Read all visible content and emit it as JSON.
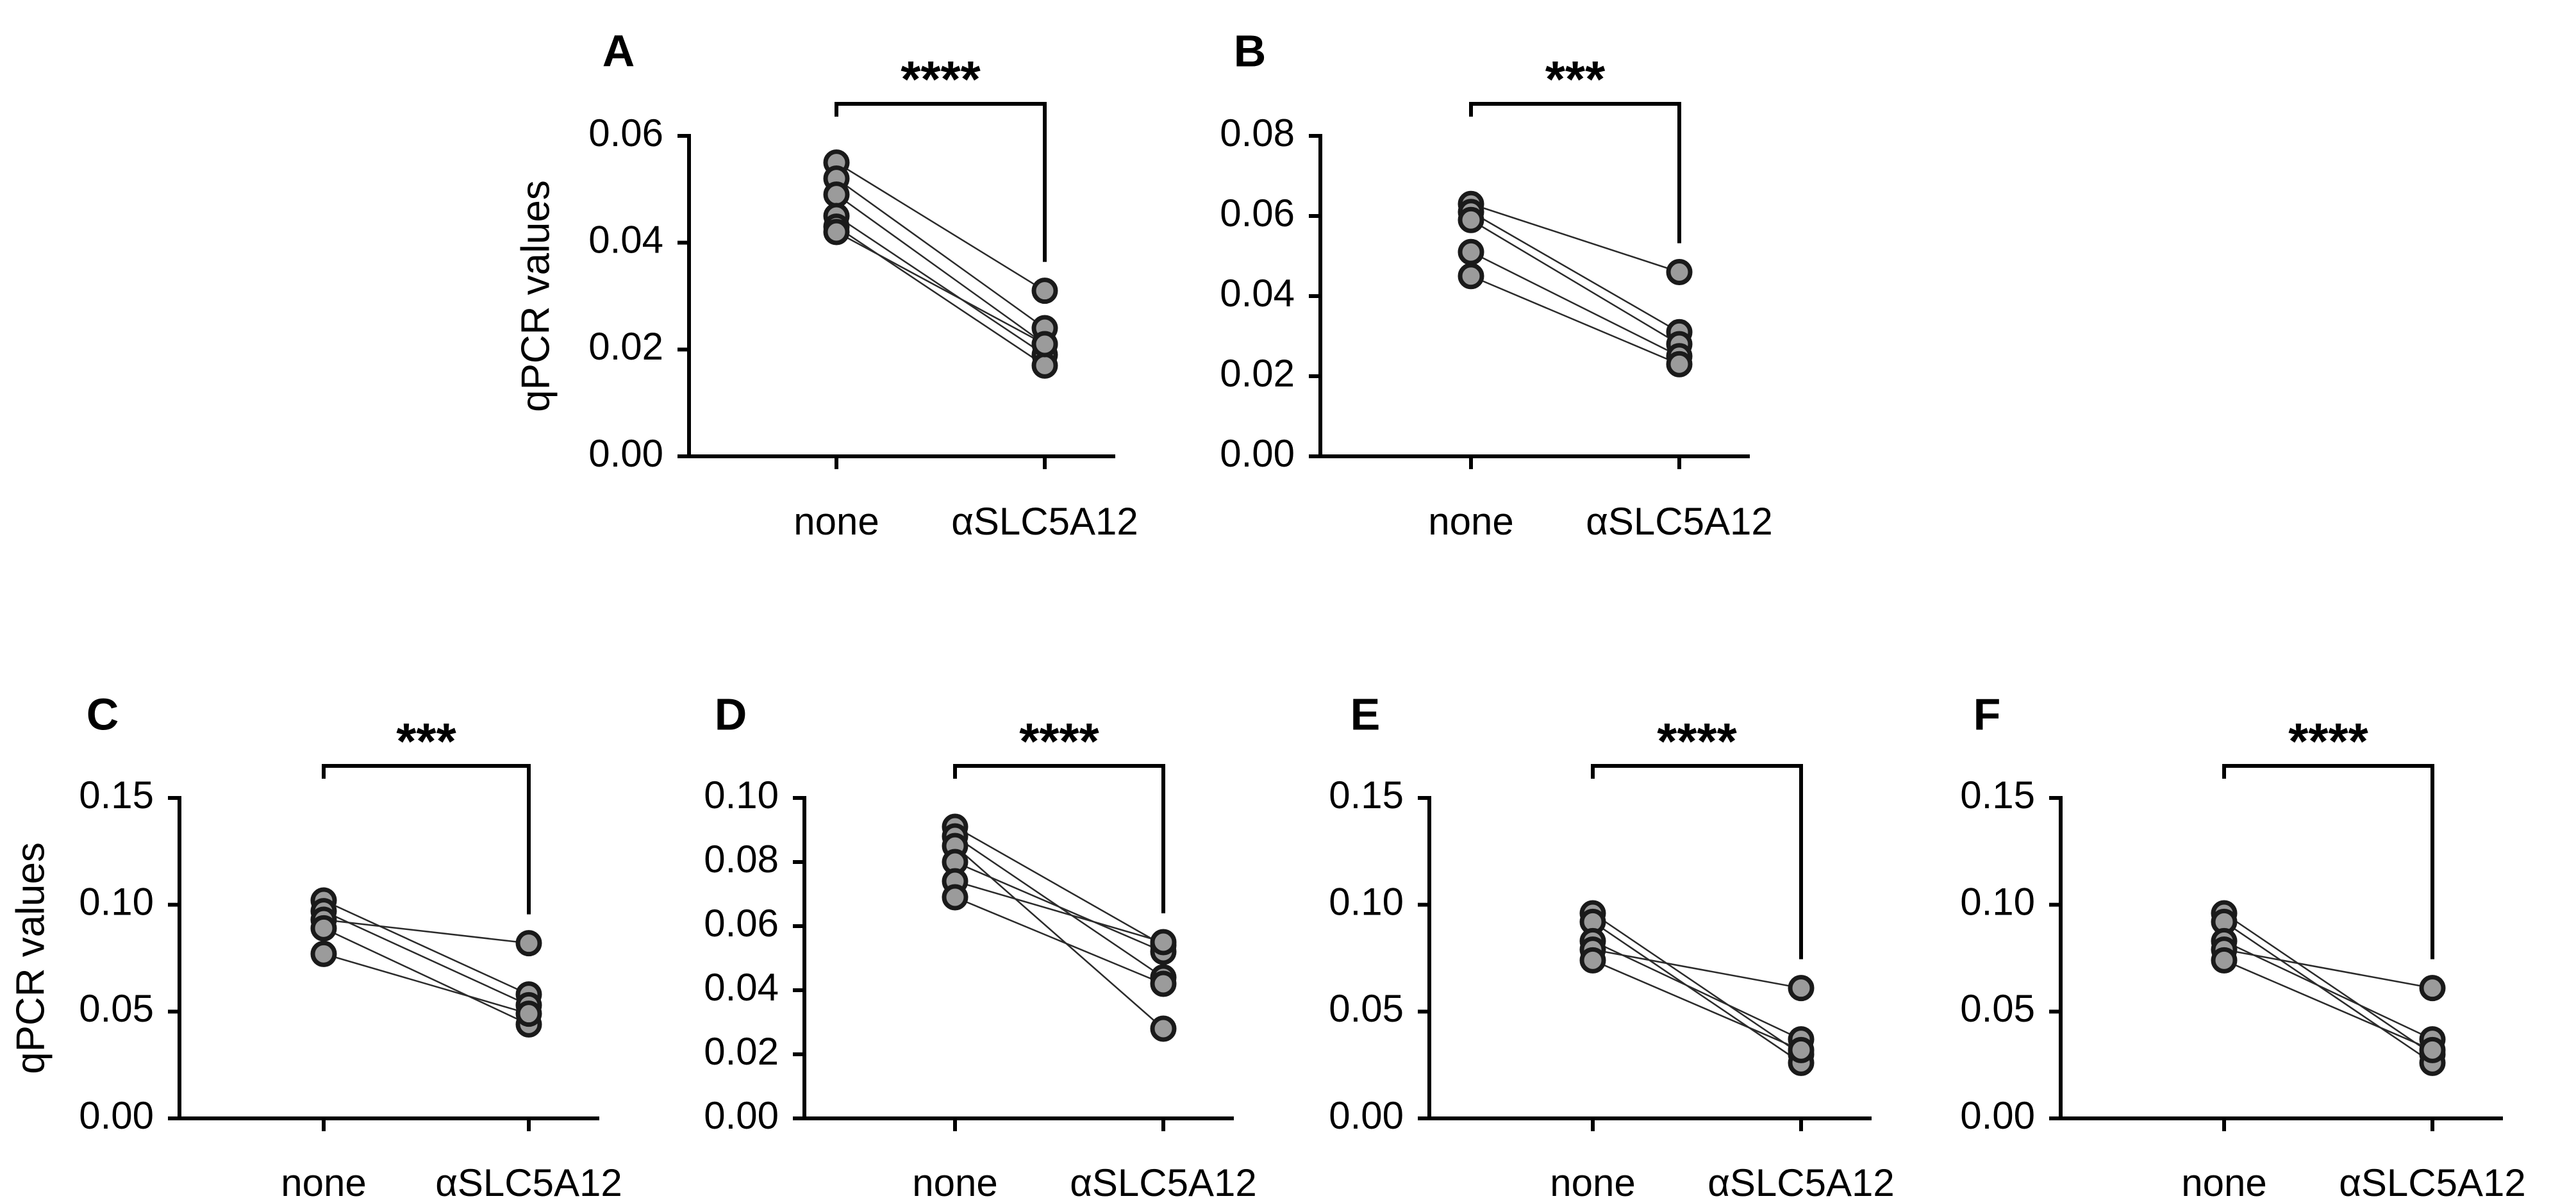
{
  "figure": {
    "point_color": "#9b9b9b",
    "point_outline_color": "#1a1a1a",
    "line_color": "#2b2b2b"
  },
  "chart_data": [
    {
      "panel": "A",
      "type": "scatter",
      "title": "",
      "xlabel": "",
      "ylabel": "qPCR values",
      "categories": [
        "none",
        "αSLC5A12"
      ],
      "ylim": [
        0,
        0.06
      ],
      "yticks": [
        0.0,
        0.02,
        0.04,
        0.06
      ],
      "ytick_labels": [
        "0.00",
        "0.02",
        "0.04",
        "0.06"
      ],
      "significance": "****",
      "pairs": [
        [
          0.055,
          0.031
        ],
        [
          0.052,
          0.024
        ],
        [
          0.049,
          0.021
        ],
        [
          0.045,
          0.019
        ],
        [
          0.043,
          0.017
        ],
        [
          0.042,
          0.021
        ]
      ]
    },
    {
      "panel": "B",
      "type": "scatter",
      "title": "",
      "xlabel": "",
      "ylabel": "",
      "categories": [
        "none",
        "αSLC5A12"
      ],
      "ylim": [
        0,
        0.08
      ],
      "yticks": [
        0.0,
        0.02,
        0.04,
        0.06,
        0.08
      ],
      "ytick_labels": [
        "0.00",
        "0.02",
        "0.04",
        "0.06",
        "0.08"
      ],
      "significance": "***",
      "pairs": [
        [
          0.063,
          0.046
        ],
        [
          0.061,
          0.031
        ],
        [
          0.059,
          0.028
        ],
        [
          0.051,
          0.025
        ],
        [
          0.045,
          0.023
        ]
      ]
    },
    {
      "panel": "C",
      "type": "scatter",
      "title": "",
      "xlabel": "",
      "ylabel": "qPCR values",
      "categories": [
        "none",
        "αSLC5A12"
      ],
      "ylim": [
        0,
        0.15
      ],
      "yticks": [
        0.0,
        0.05,
        0.1,
        0.15
      ],
      "ytick_labels": [
        "0.00",
        "0.05",
        "0.10",
        "0.15"
      ],
      "significance": "***",
      "pairs": [
        [
          0.102,
          0.058
        ],
        [
          0.097,
          0.053
        ],
        [
          0.093,
          0.082
        ],
        [
          0.089,
          0.044
        ],
        [
          0.077,
          0.049
        ]
      ]
    },
    {
      "panel": "D",
      "type": "scatter",
      "title": "",
      "xlabel": "",
      "ylabel": "",
      "categories": [
        "none",
        "αSLC5A12"
      ],
      "ylim": [
        0,
        0.1
      ],
      "yticks": [
        0.0,
        0.02,
        0.04,
        0.06,
        0.08,
        0.1
      ],
      "ytick_labels": [
        "0.00",
        "0.02",
        "0.04",
        "0.06",
        "0.08",
        "0.10"
      ],
      "significance": "****",
      "pairs": [
        [
          0.091,
          0.054
        ],
        [
          0.088,
          0.044
        ],
        [
          0.085,
          0.028
        ],
        [
          0.08,
          0.052
        ],
        [
          0.074,
          0.055
        ],
        [
          0.069,
          0.042
        ]
      ]
    },
    {
      "panel": "E",
      "type": "scatter",
      "title": "",
      "xlabel": "",
      "ylabel": "",
      "categories": [
        "none",
        "αSLC5A12"
      ],
      "ylim": [
        0,
        0.15
      ],
      "yticks": [
        0.0,
        0.05,
        0.1,
        0.15
      ],
      "ytick_labels": [
        "0.00",
        "0.05",
        "0.10",
        "0.15"
      ],
      "significance": "****",
      "pairs": [
        [
          0.096,
          0.03
        ],
        [
          0.092,
          0.026
        ],
        [
          0.083,
          0.037
        ],
        [
          0.079,
          0.061
        ],
        [
          0.074,
          0.032
        ]
      ]
    },
    {
      "panel": "F",
      "type": "scatter",
      "title": "",
      "xlabel": "",
      "ylabel": "",
      "categories": [
        "none",
        "αSLC5A12"
      ],
      "ylim": [
        0,
        0.15
      ],
      "yticks": [
        0.0,
        0.05,
        0.1,
        0.15
      ],
      "ytick_labels": [
        "0.00",
        "0.05",
        "0.10",
        "0.15"
      ],
      "significance": "****",
      "pairs": [
        [
          0.096,
          0.03
        ],
        [
          0.092,
          0.026
        ],
        [
          0.083,
          0.037
        ],
        [
          0.079,
          0.061
        ],
        [
          0.074,
          0.032
        ]
      ]
    }
  ]
}
